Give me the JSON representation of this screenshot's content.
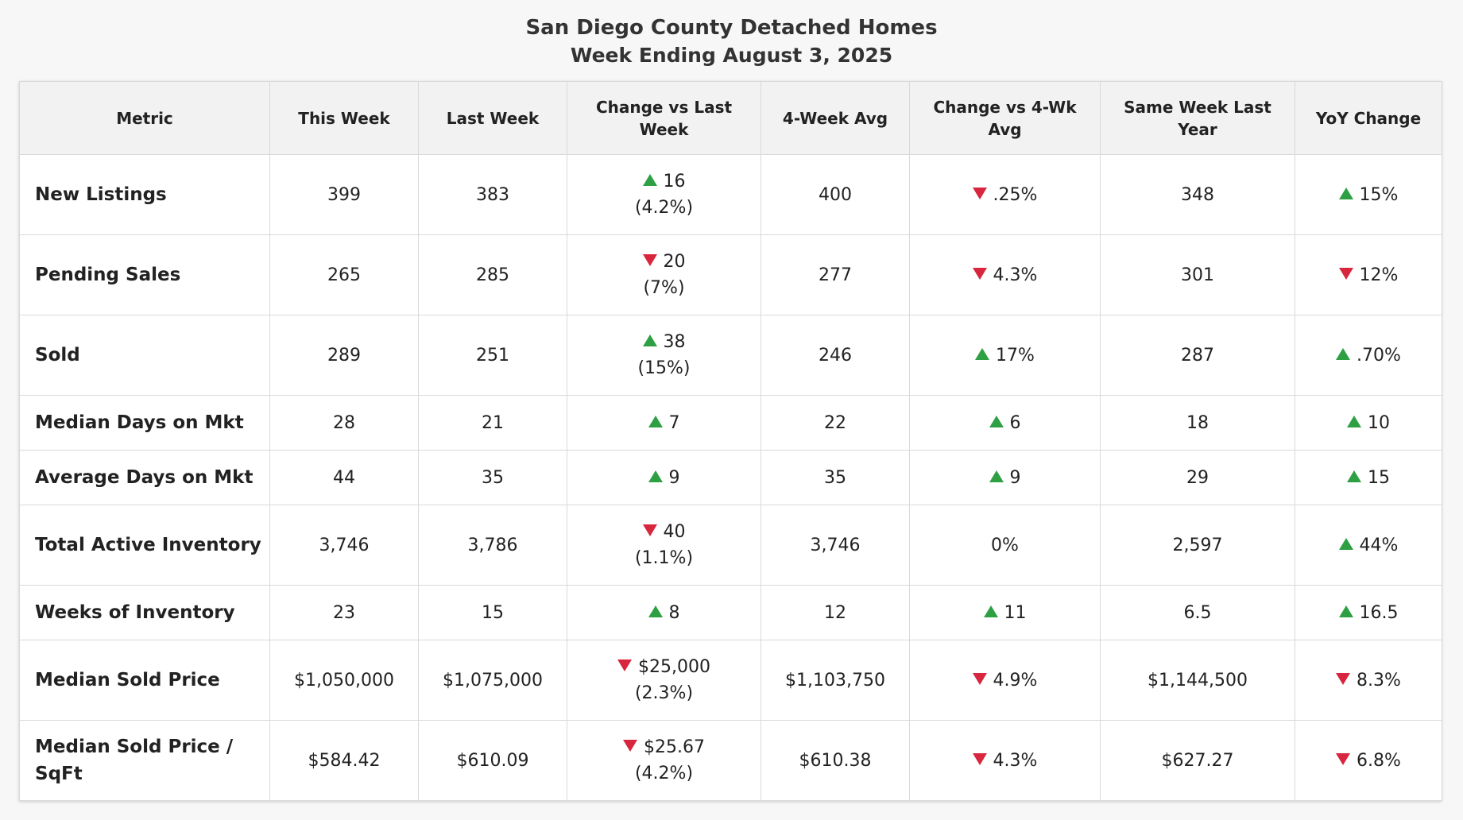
{
  "title": "San Diego County Detached Homes",
  "subtitle": "Week Ending August 3, 2025",
  "colors": {
    "up": "#2ea043",
    "down": "#d7263d",
    "header_bg": "#f2f2f2"
  },
  "headers": [
    "Metric",
    "This Week",
    "Last Week",
    "Change vs Last Week",
    "4-Week Avg",
    "Change vs 4-Wk Avg",
    "Same Week Last Year",
    "YoY Change"
  ],
  "rows": [
    {
      "metric": "New Listings",
      "size": "tall",
      "this_week": "399",
      "last_week": "383",
      "chg_last": {
        "dir": "up",
        "value": "16",
        "pct": "(4.2%)"
      },
      "avg4": "400",
      "chg_avg": {
        "dir": "down",
        "value": ".25%"
      },
      "last_year": "348",
      "yoy": {
        "dir": "up",
        "value": "15%"
      }
    },
    {
      "metric": "Pending Sales",
      "size": "tall",
      "this_week": "265",
      "last_week": "285",
      "chg_last": {
        "dir": "down",
        "value": "20",
        "pct": "(7%)"
      },
      "avg4": "277",
      "chg_avg": {
        "dir": "down",
        "value": "4.3%"
      },
      "last_year": "301",
      "yoy": {
        "dir": "down",
        "value": "12%"
      }
    },
    {
      "metric": "Sold",
      "size": "tall",
      "this_week": "289",
      "last_week": "251",
      "chg_last": {
        "dir": "up",
        "value": "38",
        "pct": "(15%)"
      },
      "avg4": "246",
      "chg_avg": {
        "dir": "up",
        "value": "17%"
      },
      "last_year": "287",
      "yoy": {
        "dir": "up",
        "value": ".70%"
      }
    },
    {
      "metric": "Median Days on Mkt",
      "size": "short",
      "this_week": "28",
      "last_week": "21",
      "chg_last": {
        "dir": "up",
        "value": "7",
        "pct": ""
      },
      "avg4": "22",
      "chg_avg": {
        "dir": "up",
        "value": "6"
      },
      "last_year": "18",
      "yoy": {
        "dir": "up",
        "value": "10"
      }
    },
    {
      "metric": "Average Days on Mkt",
      "size": "short",
      "this_week": "44",
      "last_week": "35",
      "chg_last": {
        "dir": "up",
        "value": "9",
        "pct": ""
      },
      "avg4": "35",
      "chg_avg": {
        "dir": "up",
        "value": "9"
      },
      "last_year": "29",
      "yoy": {
        "dir": "up",
        "value": "15"
      }
    },
    {
      "metric": "Total Active Inventory",
      "size": "tall",
      "this_week": "3,746",
      "last_week": "3,786",
      "chg_last": {
        "dir": "down",
        "value": "40",
        "pct": "(1.1%)"
      },
      "avg4": "3,746",
      "chg_avg": {
        "dir": "none",
        "value": "0%"
      },
      "last_year": "2,597",
      "yoy": {
        "dir": "up",
        "value": "44%"
      }
    },
    {
      "metric": "Weeks of Inventory",
      "size": "short",
      "this_week": "23",
      "last_week": "15",
      "chg_last": {
        "dir": "up",
        "value": "8",
        "pct": ""
      },
      "avg4": "12",
      "chg_avg": {
        "dir": "up",
        "value": "11"
      },
      "last_year": "6.5",
      "yoy": {
        "dir": "up",
        "value": "16.5"
      }
    },
    {
      "metric": "Median Sold Price",
      "size": "tall",
      "this_week": "$1,050,000",
      "last_week": "$1,075,000",
      "chg_last": {
        "dir": "down",
        "value": "$25,000",
        "pct": "(2.3%)"
      },
      "avg4": "$1,103,750",
      "chg_avg": {
        "dir": "down",
        "value": "4.9%"
      },
      "last_year": "$1,144,500",
      "yoy": {
        "dir": "down",
        "value": "8.3%"
      }
    },
    {
      "metric": "Median Sold Price / SqFt",
      "size": "tall",
      "this_week": "$584.42",
      "last_week": "$610.09",
      "chg_last": {
        "dir": "down",
        "value": "$25.67",
        "pct": "(4.2%)"
      },
      "avg4": "$610.38",
      "chg_avg": {
        "dir": "down",
        "value": "4.3%"
      },
      "last_year": "$627.27",
      "yoy": {
        "dir": "down",
        "value": "6.8%"
      }
    }
  ]
}
